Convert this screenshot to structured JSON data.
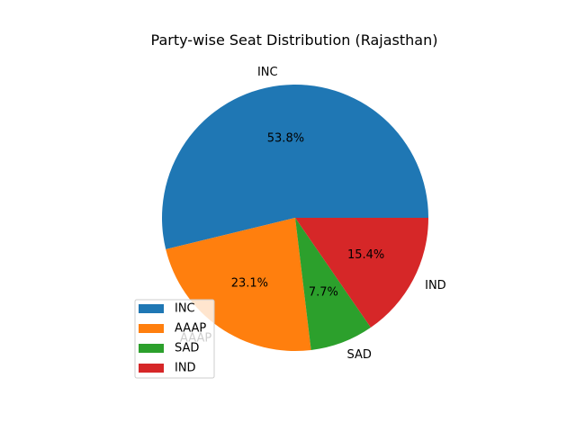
{
  "chart_data": {
    "type": "pie",
    "title": "Party-wise Seat Distribution (Rajasthan)",
    "categories": [
      "INC",
      "AAAP",
      "SAD",
      "IND"
    ],
    "values": [
      53.8,
      23.1,
      7.7,
      15.4
    ],
    "percent_labels": [
      "53.8%",
      "23.1%",
      "7.7%",
      "15.4%"
    ],
    "colors": [
      "#1f77b4",
      "#ff7f0e",
      "#2ca02c",
      "#d62728"
    ],
    "start_angle_deg": 0,
    "direction": "counterclockwise",
    "legend": {
      "placement": "lower-left",
      "entries": [
        "INC",
        "AAAP",
        "SAD",
        "IND"
      ]
    }
  }
}
